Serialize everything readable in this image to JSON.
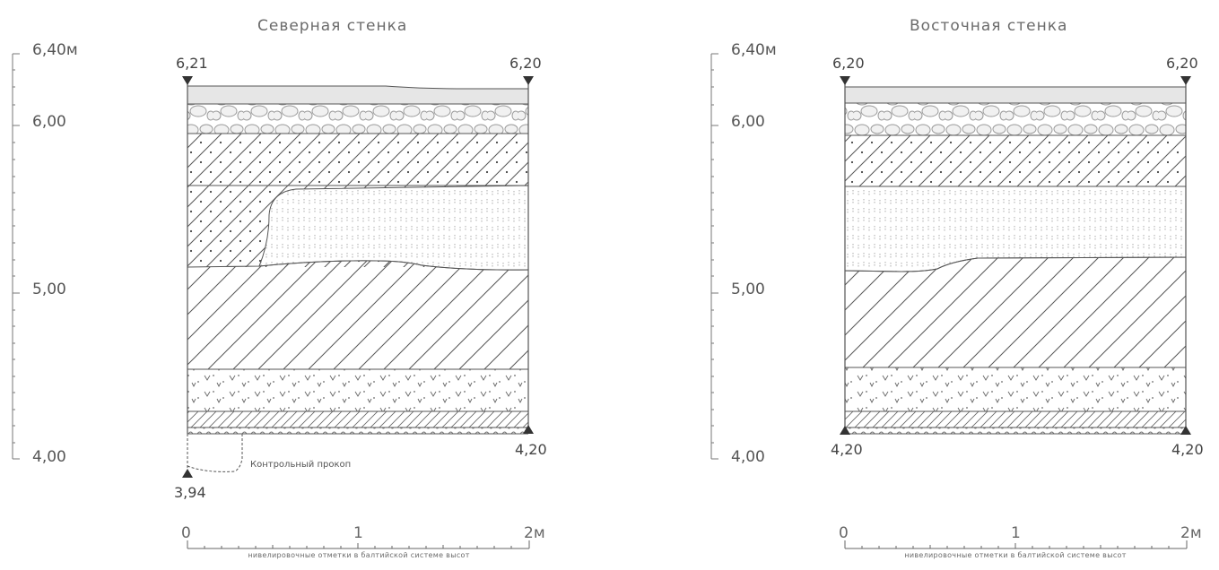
{
  "sections": [
    {
      "id": "north",
      "title": "Северная стенка",
      "axis_labels": [
        "6,40м",
        "6,00",
        "5,00",
        "4,00"
      ],
      "top_left": "6,21",
      "top_right": "6,20",
      "bottom_left": "3,94",
      "bottom_right": "4,20",
      "note": "Контрольный прокоп",
      "scale_labels": [
        "0",
        "1",
        "2м"
      ],
      "scale_caption": "нивелировочные отметки в балтийской системе высот"
    },
    {
      "id": "east",
      "title": "Восточная стенка",
      "axis_labels": [
        "6,40м",
        "6,00",
        "5,00",
        "4,00"
      ],
      "top_left": "6,20",
      "top_right": "6,20",
      "bottom_left": "4,20",
      "bottom_right": "4,20",
      "scale_labels": [
        "0",
        "1",
        "2м"
      ],
      "scale_caption": "нивелировочные отметки в балтийской системе высот"
    }
  ],
  "legend_hint": {
    "layers": [
      "turf",
      "cobble-fill",
      "hatched-dotted-loam",
      "dotted-sand",
      "hatched-loam",
      "v-marked-layer",
      "hatched-base",
      "scalloped-base"
    ]
  }
}
